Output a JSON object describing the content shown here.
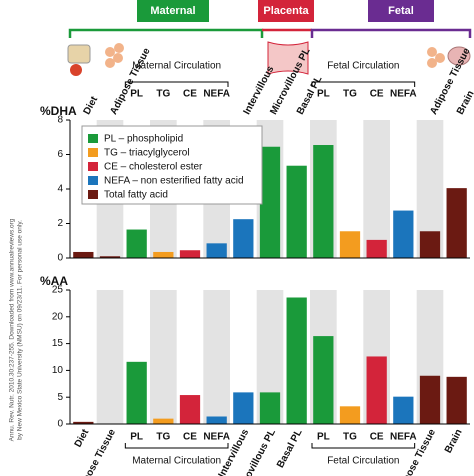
{
  "header": {
    "maternal": "Maternal",
    "placenta": "Placenta",
    "fetal": "Fetal"
  },
  "side_note": [
    "Annu. Rev. Nutr. 2010.30:237-255. Downloaded from www.annualreviews.org",
    "by New Mexico State University (NMSU) on 09/23/11. For personal use only."
  ],
  "chart_data": [
    {
      "type": "bar",
      "ylabel": "%DHA",
      "categories": [
        "Diet",
        "Adipose Tissue",
        "PL",
        "TG",
        "CE",
        "NEFA",
        "Intervillous",
        "Microvillous PL",
        "Basal PL",
        "PL",
        "TG",
        "CE",
        "NEFA",
        "Adipose Tissue",
        "Brain"
      ],
      "groups": [
        "Maternal Circulation",
        "Fetal Circulation"
      ],
      "ylim": [
        0,
        8
      ],
      "yticks": [
        0,
        2,
        4,
        6,
        8
      ],
      "legend": "upper left",
      "series": [
        {
          "name": "PL – phospholipid",
          "color": "#1a9a3a",
          "values": [
            null,
            null,
            1.65,
            null,
            null,
            null,
            null,
            6.45,
            5.35,
            6.55,
            null,
            null,
            null,
            null,
            null
          ]
        },
        {
          "name": "TG – triacylglycerol",
          "color": "#f39c1f",
          "values": [
            null,
            null,
            null,
            0.35,
            null,
            null,
            null,
            null,
            null,
            null,
            1.55,
            null,
            null,
            null,
            null
          ]
        },
        {
          "name": "CE – cholesterol ester",
          "color": "#d3243a",
          "values": [
            null,
            null,
            null,
            null,
            0.45,
            null,
            null,
            null,
            null,
            null,
            null,
            1.05,
            null,
            null,
            null
          ]
        },
        {
          "name": "NEFA – non esterified fatty acid",
          "color": "#1b75bc",
          "values": [
            null,
            null,
            null,
            null,
            null,
            0.85,
            2.25,
            null,
            null,
            null,
            null,
            null,
            2.75,
            null,
            null
          ]
        },
        {
          "name": "Total fatty acid",
          "color": "#6b1a12",
          "values": [
            0.35,
            0.1,
            null,
            null,
            null,
            null,
            null,
            null,
            null,
            null,
            null,
            null,
            null,
            1.55,
            4.05
          ]
        }
      ]
    },
    {
      "type": "bar",
      "ylabel": "%AA",
      "categories": [
        "Diet",
        "Adipose Tissue",
        "PL",
        "TG",
        "CE",
        "NEFA",
        "Intervillous",
        "Microvillous PL",
        "Basal PL",
        "PL",
        "TG",
        "CE",
        "NEFA",
        "Adipose Tissue",
        "Brain"
      ],
      "groups": [
        "Maternal Circulation",
        "Fetal Circulation"
      ],
      "ylim": [
        0,
        25
      ],
      "yticks": [
        0,
        5,
        10,
        15,
        20,
        25
      ],
      "series": [
        {
          "color": "#1a9a3a",
          "values": [
            null,
            null,
            11.6,
            null,
            null,
            null,
            null,
            5.9,
            23.6,
            16.4,
            null,
            null,
            null,
            null,
            null
          ]
        },
        {
          "color": "#f39c1f",
          "values": [
            null,
            null,
            null,
            1.0,
            null,
            null,
            null,
            null,
            null,
            null,
            3.3,
            null,
            null,
            null,
            null
          ]
        },
        {
          "color": "#d3243a",
          "values": [
            null,
            null,
            null,
            null,
            5.4,
            null,
            null,
            null,
            null,
            null,
            null,
            12.6,
            null,
            null,
            null
          ]
        },
        {
          "color": "#1b75bc",
          "values": [
            null,
            null,
            null,
            null,
            null,
            1.4,
            5.9,
            null,
            null,
            null,
            null,
            null,
            5.1,
            null,
            null
          ]
        },
        {
          "color": "#6b1a12",
          "values": [
            0.4,
            null,
            null,
            null,
            null,
            null,
            null,
            null,
            null,
            null,
            null,
            null,
            null,
            9.0,
            8.8
          ]
        }
      ]
    }
  ]
}
